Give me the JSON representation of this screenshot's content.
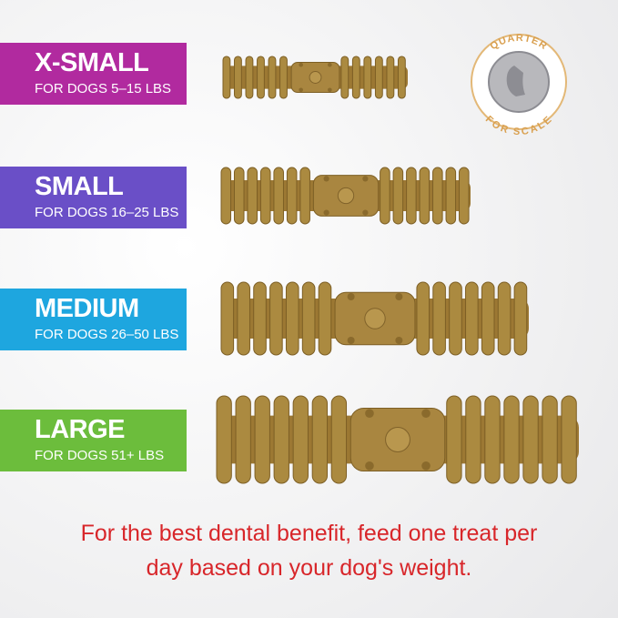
{
  "sizes": [
    {
      "name": "X-SMALL",
      "weight": "FOR DOGS 5–15 LBS",
      "color": "#b12a9f"
    },
    {
      "name": "SMALL",
      "weight": "FOR DOGS 16–25 LBS",
      "color": "#6a4fc7"
    },
    {
      "name": "MEDIUM",
      "weight": "FOR DOGS 26–50 LBS",
      "color": "#1ea6df"
    },
    {
      "name": "LARGE",
      "weight": "FOR DOGS 51+ LBS",
      "color": "#6cbd3c"
    }
  ],
  "scale": {
    "top": "QUARTER",
    "bottom": "FOR SCALE"
  },
  "footer": {
    "line1": "For the best dental benefit, feed one treat per",
    "line2": "day based on your dog's weight."
  }
}
